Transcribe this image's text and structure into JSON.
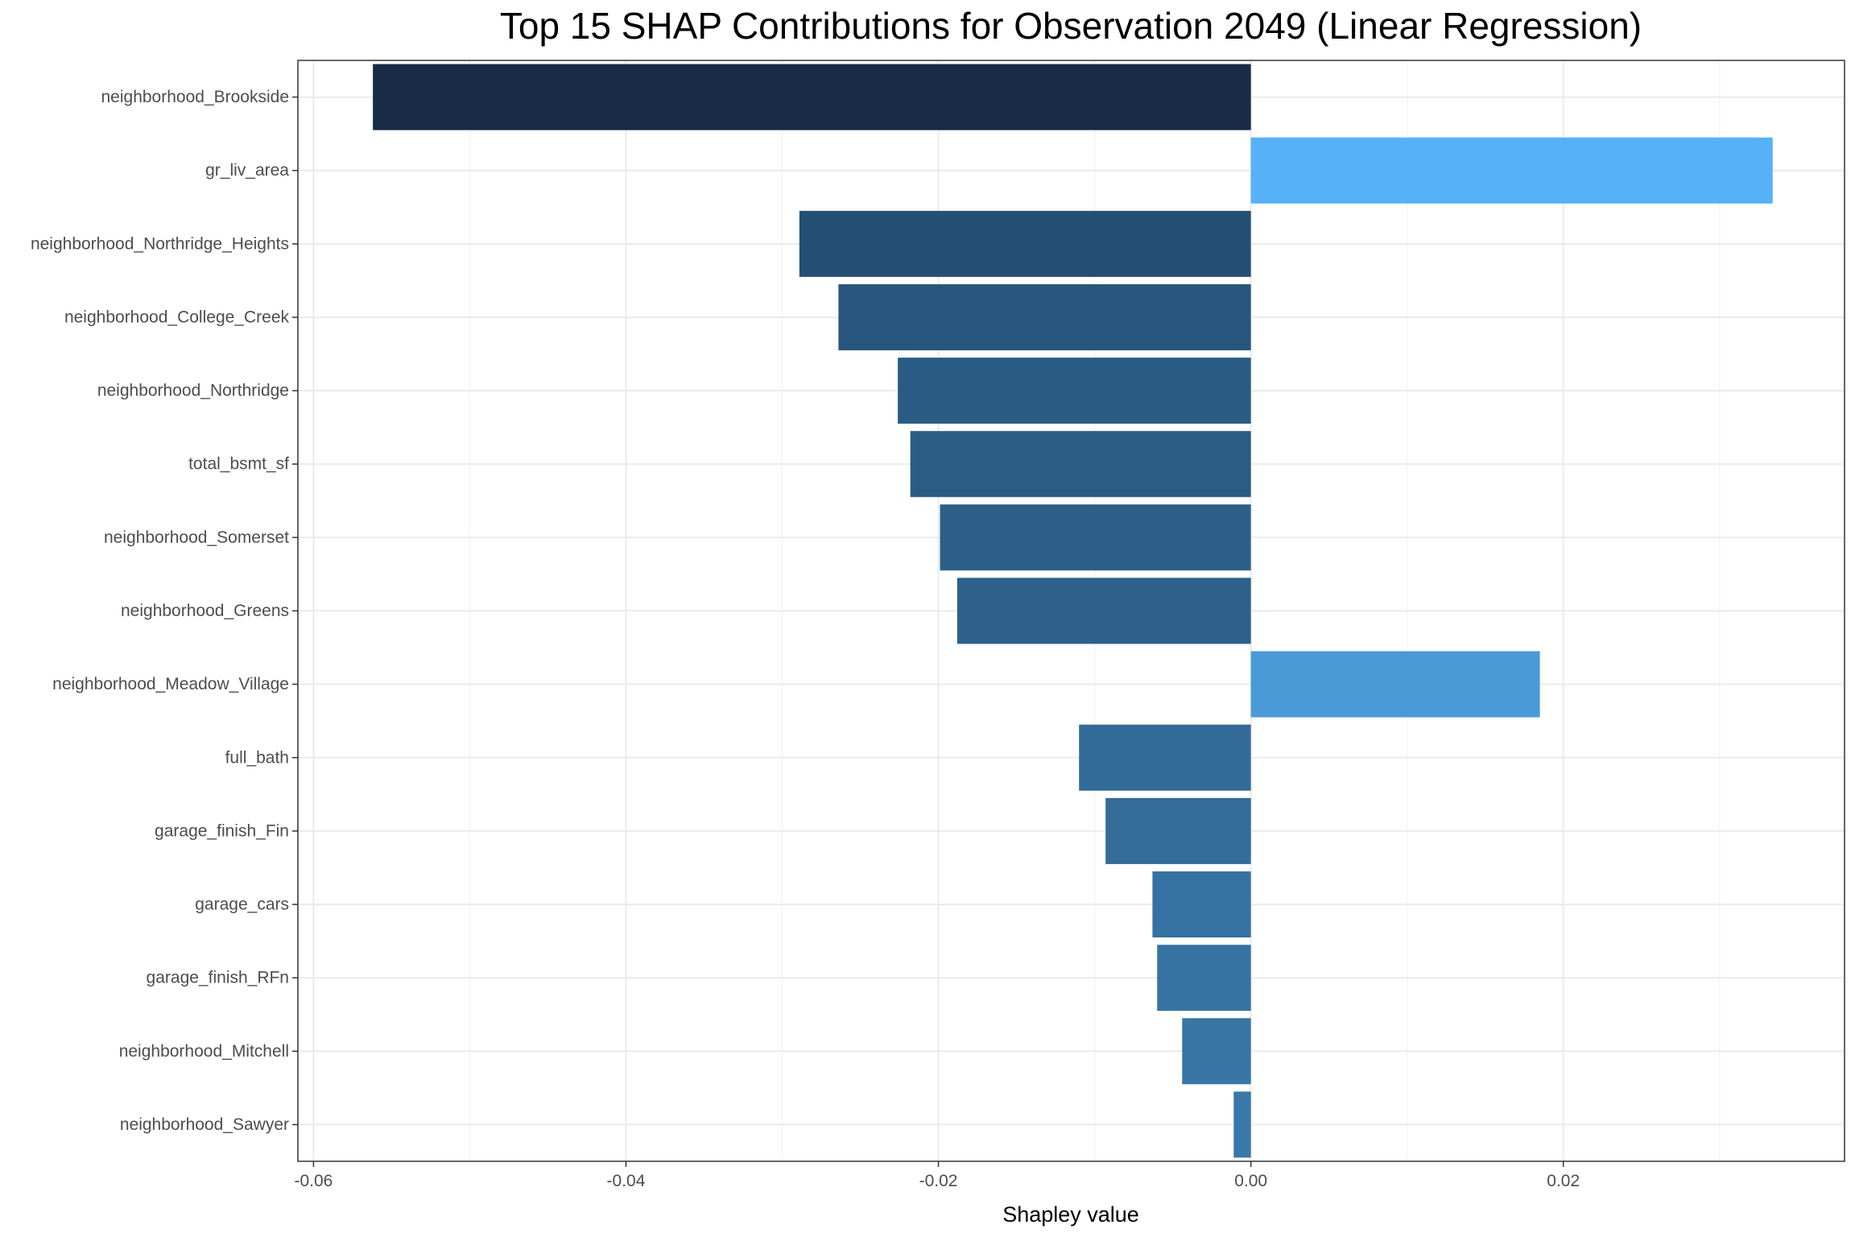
{
  "chart_data": {
    "type": "bar",
    "orientation": "horizontal",
    "title": "Top 15 SHAP Contributions for Observation 2049 (Linear Regression)",
    "xlabel": "Shapley value",
    "ylabel": "",
    "xlim": [
      -0.061,
      0.038
    ],
    "x_ticks": [
      -0.06,
      -0.04,
      -0.02,
      0.0,
      0.02
    ],
    "x_tick_labels": [
      "-0.06",
      "-0.04",
      "-0.02",
      "0.00",
      "0.02"
    ],
    "grid": true,
    "legend": "none",
    "categories": [
      "neighborhood_Brookside",
      "gr_liv_area",
      "neighborhood_Northridge_Heights",
      "neighborhood_College_Creek",
      "neighborhood_Northridge",
      "total_bsmt_sf",
      "neighborhood_Somerset",
      "neighborhood_Greens",
      "neighborhood_Meadow_Village",
      "full_bath",
      "garage_finish_Fin",
      "garage_cars",
      "garage_finish_RFn",
      "neighborhood_Mitchell",
      "neighborhood_Sawyer"
    ],
    "values": [
      -0.0562,
      0.0334,
      -0.0289,
      -0.0264,
      -0.0226,
      -0.0218,
      -0.0199,
      -0.0188,
      0.0185,
      -0.011,
      -0.0093,
      -0.0063,
      -0.006,
      -0.0044,
      -0.0011
    ],
    "colors": [
      "#172b45",
      "#56b1f7",
      "#264f75",
      "#28567e",
      "#2a5b84",
      "#2b5c86",
      "#2c5f89",
      "#2d618b",
      "#4a9ad8",
      "#336b98",
      "#346c9a",
      "#3672a1",
      "#3673a2",
      "#3875a5",
      "#3a78a9"
    ]
  }
}
